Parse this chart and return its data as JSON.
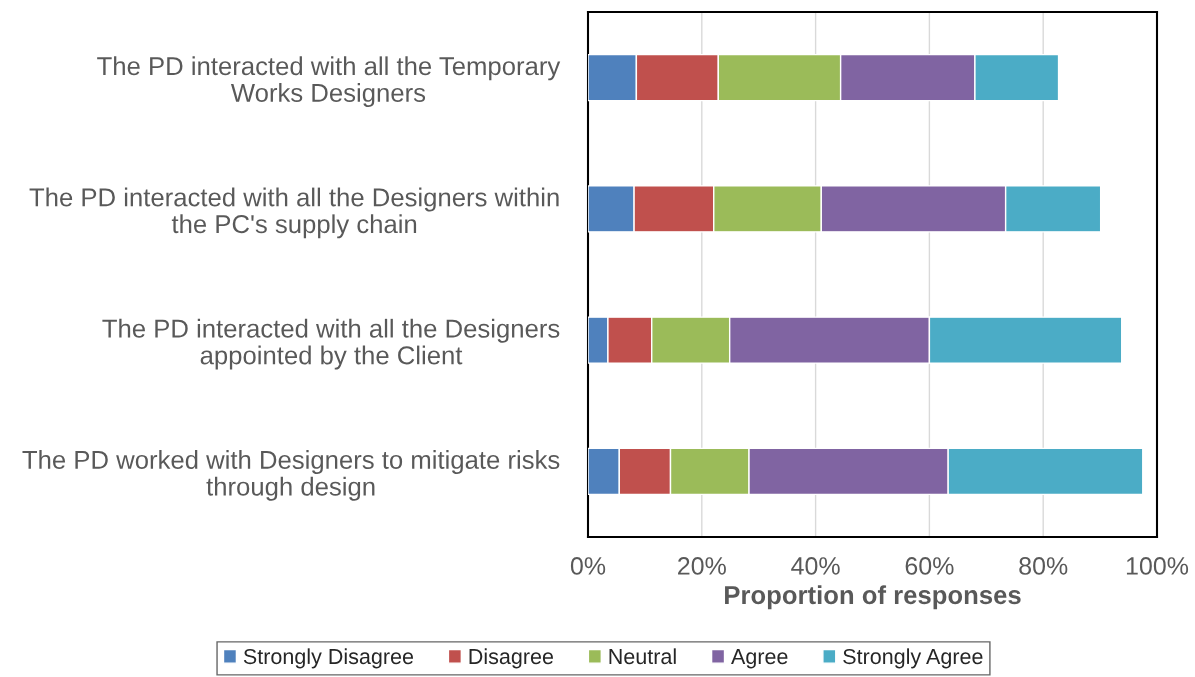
{
  "chart_data": {
    "type": "bar",
    "orientation": "horizontal",
    "stacked": true,
    "categories": [
      "The PD interacted with all the Temporary\nWorks Designers",
      "The PD interacted with all the Designers within\nthe PC's supply chain",
      "The PD interacted with all the Designers\nappointed by the Client",
      "The PD worked with Designers to mitigate risks\nthrough design"
    ],
    "series": [
      {
        "name": "Strongly Disagree",
        "color": "#4f81bd",
        "values": [
          8.5,
          8.1,
          3.5,
          5.5
        ]
      },
      {
        "name": "Disagree",
        "color": "#c0504d",
        "values": [
          14.4,
          14.0,
          7.7,
          9.0
        ]
      },
      {
        "name": "Neutral",
        "color": "#9bbb59",
        "values": [
          21.5,
          18.9,
          13.7,
          13.8
        ]
      },
      {
        "name": "Agree",
        "color": "#8064a2",
        "values": [
          23.6,
          32.4,
          35.1,
          35.0
        ]
      },
      {
        "name": "Strongly Agree",
        "color": "#4bacc6",
        "values": [
          14.7,
          16.7,
          33.8,
          34.2
        ]
      }
    ],
    "xlim": [
      0,
      100
    ],
    "xticks": [
      {
        "value": 0,
        "label": "0%"
      },
      {
        "value": 20,
        "label": "20%"
      },
      {
        "value": 40,
        "label": "40%"
      },
      {
        "value": 60,
        "label": "60%"
      },
      {
        "value": 80,
        "label": "80%"
      },
      {
        "value": 100,
        "label": "100%"
      }
    ],
    "xlabel": "Proportion of responses",
    "grid": "x",
    "legend": "bottom"
  }
}
